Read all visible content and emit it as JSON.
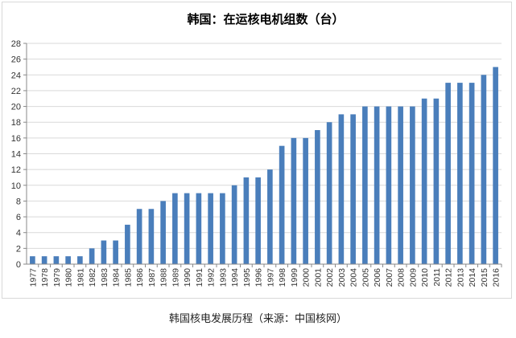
{
  "chart_data": {
    "type": "bar",
    "title": "韩国：在运核电机组数（台）",
    "xlabel": "",
    "ylabel": "",
    "ylim": [
      0,
      28
    ],
    "yticks": [
      0,
      2,
      4,
      6,
      8,
      10,
      12,
      14,
      16,
      18,
      20,
      22,
      24,
      26,
      28
    ],
    "grid": true,
    "legend": "none",
    "categories": [
      "1977",
      "1978",
      "1979",
      "1980",
      "1981",
      "1982",
      "1983",
      "1984",
      "1985",
      "1986",
      "1987",
      "1988",
      "1989",
      "1990",
      "1991",
      "1992",
      "1993",
      "1994",
      "1995",
      "1996",
      "1997",
      "1998",
      "1999",
      "2000",
      "2001",
      "2002",
      "2003",
      "2004",
      "2005",
      "2006",
      "2007",
      "2008",
      "2009",
      "2010",
      "2011",
      "2012",
      "2013",
      "2014",
      "2015",
      "2016"
    ],
    "values": [
      1,
      1,
      1,
      1,
      1,
      2,
      3,
      3,
      5,
      7,
      7,
      8,
      9,
      9,
      9,
      9,
      9,
      10,
      11,
      11,
      12,
      15,
      16,
      16,
      17,
      18,
      19,
      19,
      20,
      20,
      20,
      20,
      20,
      21,
      21,
      23,
      23,
      23,
      24,
      25
    ],
    "bar_color": "#4a7ebb"
  },
  "caption": "韩国核电发展历程（来源：中国核网）"
}
